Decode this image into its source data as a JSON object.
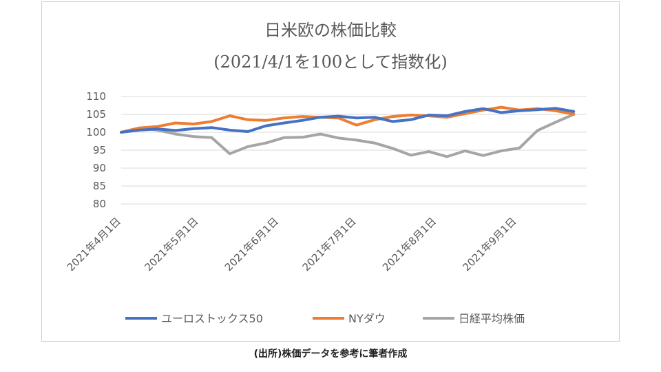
{
  "source_note": "(出所)株価データを参考に筆者作成",
  "chart_data": {
    "type": "line",
    "title": "日米欧の株価比較",
    "subtitle": "(2021/4/1を100として指数化)",
    "xlabel": "",
    "ylabel": "",
    "ylim": [
      80,
      110
    ],
    "yticks": [
      80,
      85,
      90,
      95,
      100,
      105,
      110
    ],
    "grid": true,
    "legend_position": "bottom",
    "x": [
      "2021-04-01",
      "2021-04-08",
      "2021-04-15",
      "2021-04-22",
      "2021-04-29",
      "2021-05-06",
      "2021-05-13",
      "2021-05-20",
      "2021-05-27",
      "2021-06-03",
      "2021-06-10",
      "2021-06-17",
      "2021-06-24",
      "2021-07-01",
      "2021-07-08",
      "2021-07-15",
      "2021-07-22",
      "2021-07-29",
      "2021-08-05",
      "2021-08-12",
      "2021-08-19",
      "2021-08-26",
      "2021-09-02",
      "2021-09-09",
      "2021-09-16",
      "2021-09-23"
    ],
    "x_tick_labels": [
      "2021年4月1日",
      "2021年5月1日",
      "2021年6月1日",
      "2021年7月1日",
      "2021年8月1日",
      "2021年9月1日"
    ],
    "x_tick_dates": [
      "2021-04-01",
      "2021-05-01",
      "2021-06-01",
      "2021-07-01",
      "2021-08-01",
      "2021-09-01"
    ],
    "x_range": [
      "2021-04-01",
      "2021-09-28"
    ],
    "series": [
      {
        "name": "ユーロストックス50",
        "color": "#4472C4",
        "values": [
          100.0,
          100.6,
          100.9,
          100.5,
          101.0,
          101.3,
          100.6,
          100.2,
          101.8,
          102.6,
          103.3,
          104.2,
          104.5,
          104.0,
          104.2,
          103.0,
          103.5,
          104.8,
          104.6,
          105.8,
          106.6,
          105.5,
          106.0,
          106.3,
          106.7,
          105.8
        ]
      },
      {
        "name": "NYダウ",
        "color": "#ED7D31",
        "values": [
          100.0,
          101.2,
          101.6,
          102.6,
          102.3,
          103.0,
          104.6,
          103.5,
          103.3,
          104.0,
          104.4,
          104.2,
          104.0,
          102.0,
          103.5,
          104.4,
          104.8,
          104.6,
          104.2,
          105.2,
          106.2,
          107.0,
          106.2,
          106.6,
          106.0,
          105.1
        ]
      },
      {
        "name": "日経平均株価",
        "color": "#A5A5A5",
        "values": [
          100.0,
          101.2,
          100.6,
          99.5,
          98.8,
          98.5,
          94.0,
          96.0,
          97.0,
          98.5,
          98.6,
          99.5,
          98.4,
          97.8,
          97.0,
          95.5,
          93.6,
          94.6,
          93.2,
          94.8,
          93.5,
          94.8,
          95.6,
          100.5,
          102.8,
          105.0
        ]
      }
    ]
  }
}
